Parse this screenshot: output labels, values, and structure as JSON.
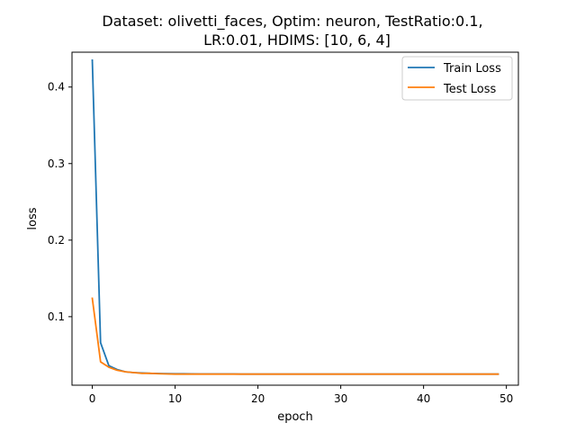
{
  "chart_data": {
    "type": "line",
    "title": "Dataset: olivetti_faces, Optim: neuron, TestRatio:0.1,",
    "subtitle": "LR:0.01, HDIMS: [10, 6, 4]",
    "xlabel": "epoch",
    "ylabel": "loss",
    "xlim": [
      -2.45,
      51.45
    ],
    "ylim": [
      0.0105,
      0.4455
    ],
    "xticks": [
      0,
      10,
      20,
      30,
      40,
      50
    ],
    "yticks": [
      0.1,
      0.2,
      0.3,
      0.4
    ],
    "grid": false,
    "legend_position": "top-right",
    "x": [
      0,
      1,
      2,
      3,
      4,
      5,
      6,
      7,
      8,
      9,
      10,
      11,
      12,
      13,
      14,
      15,
      16,
      17,
      18,
      19,
      20,
      21,
      22,
      23,
      24,
      25,
      26,
      27,
      28,
      29,
      30,
      31,
      32,
      33,
      34,
      35,
      36,
      37,
      38,
      39,
      40,
      41,
      42,
      43,
      44,
      45,
      46,
      47,
      48,
      49
    ],
    "series": [
      {
        "name": "Train Loss",
        "color": "#1f77b4",
        "values": [
          0.435,
          0.066,
          0.036,
          0.031,
          0.028,
          0.027,
          0.0265,
          0.026,
          0.0258,
          0.0256,
          0.0255,
          0.0254,
          0.0253,
          0.0252,
          0.0252,
          0.0251,
          0.0251,
          0.0251,
          0.025,
          0.025,
          0.025,
          0.025,
          0.025,
          0.025,
          0.025,
          0.025,
          0.025,
          0.025,
          0.025,
          0.025,
          0.025,
          0.025,
          0.025,
          0.025,
          0.025,
          0.025,
          0.025,
          0.025,
          0.025,
          0.025,
          0.025,
          0.025,
          0.025,
          0.025,
          0.025,
          0.025,
          0.025,
          0.025,
          0.025,
          0.025
        ]
      },
      {
        "name": "Test Loss",
        "color": "#ff7f0e",
        "values": [
          0.124,
          0.041,
          0.034,
          0.03,
          0.028,
          0.027,
          0.026,
          0.026,
          0.0255,
          0.0252,
          0.025,
          0.025,
          0.025,
          0.025,
          0.025,
          0.025,
          0.025,
          0.025,
          0.025,
          0.025,
          0.025,
          0.025,
          0.025,
          0.025,
          0.025,
          0.025,
          0.025,
          0.025,
          0.025,
          0.025,
          0.025,
          0.025,
          0.025,
          0.025,
          0.025,
          0.025,
          0.025,
          0.025,
          0.025,
          0.025,
          0.025,
          0.025,
          0.025,
          0.025,
          0.025,
          0.025,
          0.025,
          0.025,
          0.025,
          0.025
        ]
      }
    ]
  }
}
